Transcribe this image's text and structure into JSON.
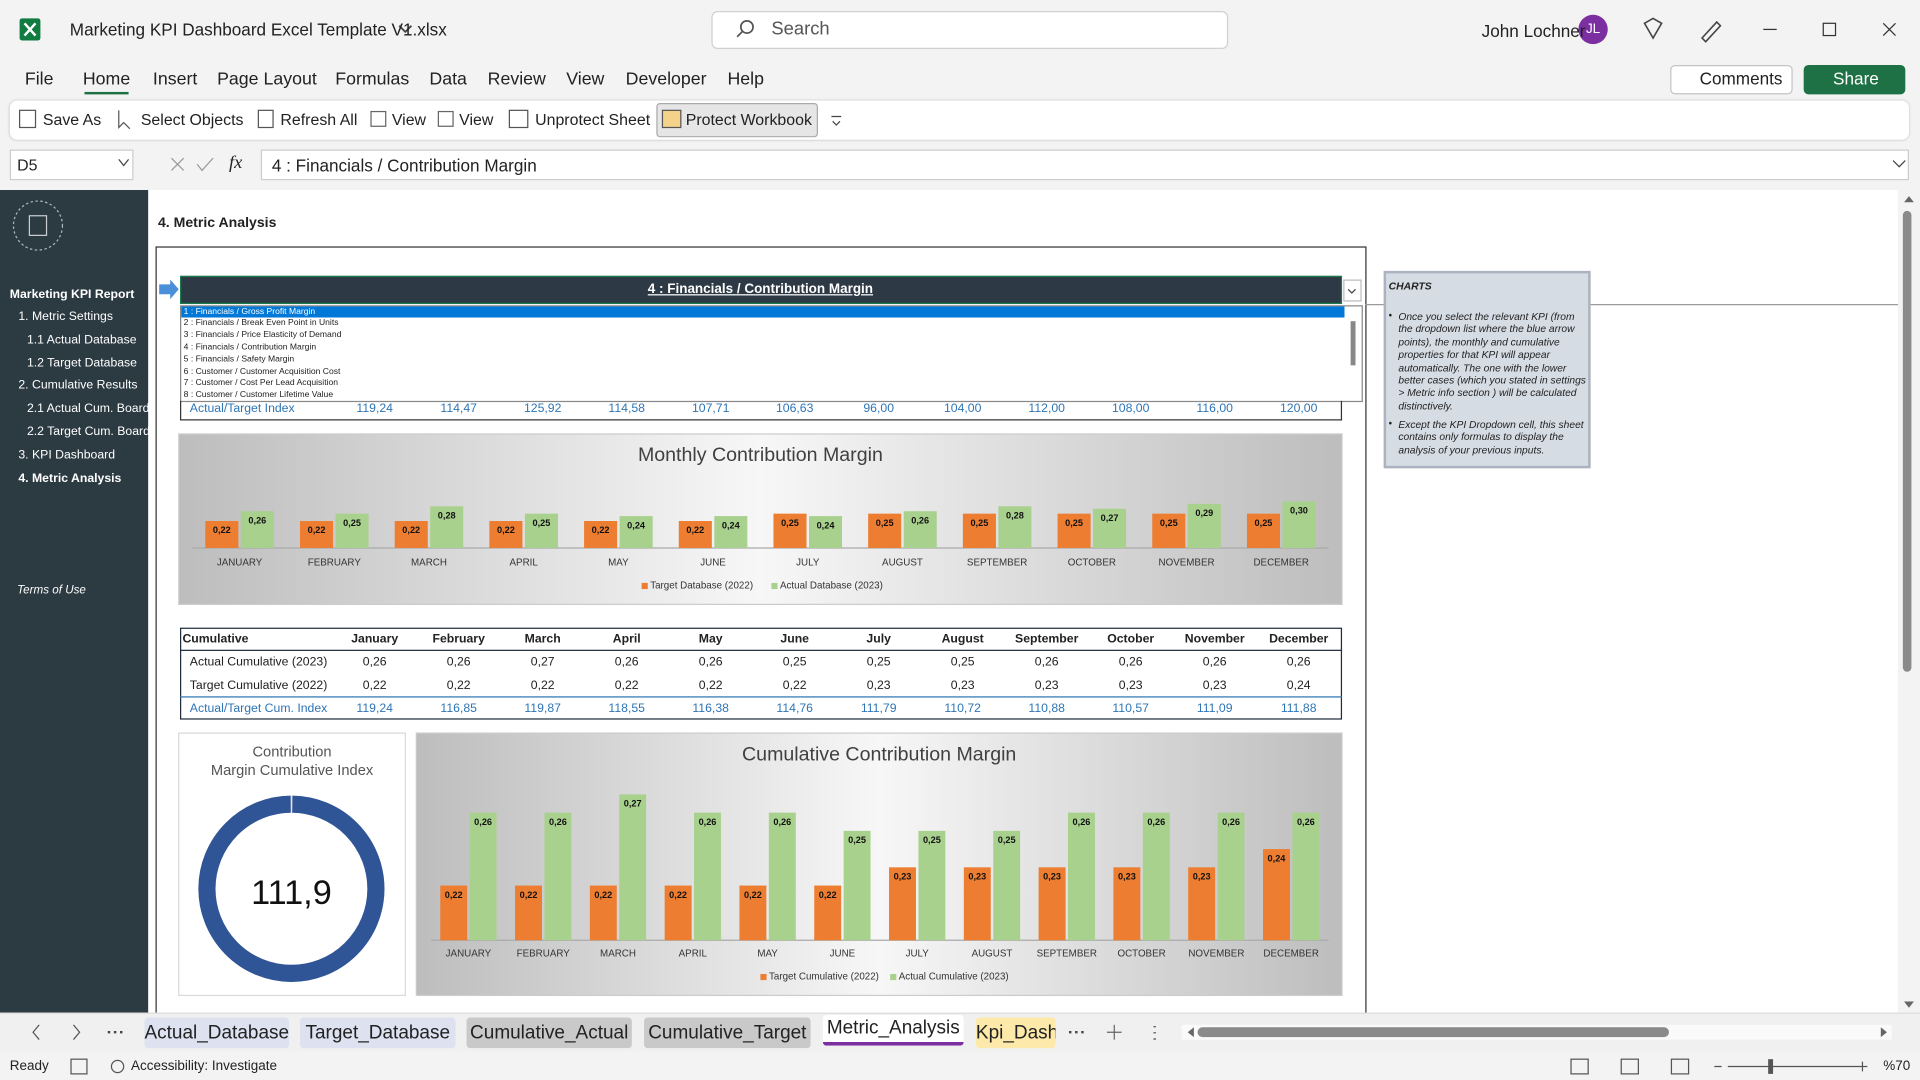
{
  "app": {
    "file_name": "Marketing KPI Dashboard Excel Template V1.xlsx",
    "search": "Search",
    "user": "John Lochner",
    "initials": "JL",
    "comments": "Comments",
    "share": "Share"
  },
  "menu": [
    "File",
    "Home",
    "Insert",
    "Page Layout",
    "Formulas",
    "Data",
    "Review",
    "View",
    "Developer",
    "Help"
  ],
  "toolbar": [
    "Save As",
    "Select Objects",
    "Refresh All",
    "View",
    "View",
    "Unprotect Sheet",
    "Protect Workbook"
  ],
  "formula_bar": {
    "cell": "D5",
    "fx": "fx",
    "formula": "4 : Financials / Contribution Margin"
  },
  "sidebar": {
    "title": "Marketing KPI Report",
    "items": [
      "1. Metric Settings",
      "1.1 Actual Database",
      "1.2 Target Database",
      "2. Cumulative Results",
      "2.1 Actual Cum. Board",
      "2.2 Target Cum. Board",
      "3. KPI Dashboard",
      "4. Metric Analysis"
    ],
    "terms": "Terms of Use"
  },
  "sheet": {
    "heading": "4. Metric Analysis",
    "kpi_selected": "4 : Financials / Contribution Margin",
    "kpi_options": [
      "1 : Financials / Gross Profit Margin",
      "2 : Financials / Break Even Point in Units",
      "3 : Financials / Price Elasticity of Demand",
      "4 : Financials / Contribution Margin",
      "5 : Financials / Safety Margin",
      "6 : Customer / Customer Acquisition Cost",
      "7 : Customer / Cost Per Lead Acquisition",
      "8 : Customer / Customer Lifetime Value"
    ],
    "monthly_index": {
      "label": "Actual/Target Index",
      "values": [
        "119,24",
        "114,47",
        "125,92",
        "114,58",
        "107,71",
        "106,63",
        "96,00",
        "104,00",
        "112,00",
        "108,00",
        "116,00",
        "120,00"
      ]
    },
    "cumulative_table": {
      "header": [
        "Cumulative",
        "January",
        "February",
        "March",
        "April",
        "May",
        "June",
        "July",
        "August",
        "September",
        "October",
        "November",
        "December"
      ],
      "rows": [
        [
          "Actual Cumulative (2023)",
          "0,26",
          "0,26",
          "0,27",
          "0,26",
          "0,26",
          "0,25",
          "0,25",
          "0,25",
          "0,26",
          "0,26",
          "0,26",
          "0,26"
        ],
        [
          "Target Cumulative (2022)",
          "0,22",
          "0,22",
          "0,22",
          "0,22",
          "0,22",
          "0,22",
          "0,23",
          "0,23",
          "0,23",
          "0,23",
          "0,23",
          "0,24"
        ],
        [
          "Actual/Target Cum. Index",
          "119,24",
          "116,85",
          "119,87",
          "118,55",
          "116,38",
          "114,76",
          "111,79",
          "110,72",
          "110,88",
          "110,57",
          "111,09",
          "111,88"
        ]
      ]
    },
    "info": {
      "title": "CHARTS",
      "bullets": [
        "Once you select the relevant KPI (from the dropdown list where the blue arrow points), the monthly and cumulative properties for that KPI will appear automatically. The one with the lower better cases (which you stated in settings > Metric info section ) will be calculated distinctively.",
        "Except the KPI Dropdown cell, this sheet contains only formulas to display the analysis of your previous inputs."
      ]
    }
  },
  "chart_data": [
    {
      "type": "bar",
      "title": "Monthly Contribution Margin",
      "categories": [
        "JANUARY",
        "FEBRUARY",
        "MARCH",
        "APRIL",
        "MAY",
        "JUNE",
        "JULY",
        "AUGUST",
        "SEPTEMBER",
        "OCTOBER",
        "NOVEMBER",
        "DECEMBER"
      ],
      "series": [
        {
          "name": "Target Database (2022)",
          "color": "#ed7d31",
          "values": [
            0.22,
            0.22,
            0.22,
            0.22,
            0.22,
            0.22,
            0.25,
            0.25,
            0.25,
            0.25,
            0.25,
            0.25
          ],
          "value_labels": [
            "0,22",
            "0,22",
            "0,22",
            "0,22",
            "0,22",
            "0,22",
            "0,25",
            "0,25",
            "0,25",
            "0,25",
            "0,25",
            "0,25"
          ]
        },
        {
          "name": "Actual Database (2023)",
          "color": "#a9d18e",
          "values": [
            0.26,
            0.25,
            0.28,
            0.25,
            0.24,
            0.24,
            0.24,
            0.26,
            0.28,
            0.27,
            0.29,
            0.3
          ],
          "value_labels": [
            "0,26",
            "0,25",
            "0,28",
            "0,25",
            "0,24",
            "0,24",
            "0,24",
            "0,26",
            "0,28",
            "0,27",
            "0,29",
            "0,30"
          ]
        }
      ]
    },
    {
      "type": "donut",
      "title": "Contribution Margin Cumulative Index",
      "value": 111.9,
      "value_label": "111,9",
      "color": "#2f5597"
    },
    {
      "type": "bar",
      "title": "Cumulative Contribution Margin",
      "categories": [
        "JANUARY",
        "FEBRUARY",
        "MARCH",
        "APRIL",
        "MAY",
        "JUNE",
        "JULY",
        "AUGUST",
        "SEPTEMBER",
        "OCTOBER",
        "NOVEMBER",
        "DECEMBER"
      ],
      "series": [
        {
          "name": "Target Cumulative (2022)",
          "color": "#ed7d31",
          "values": [
            0.22,
            0.22,
            0.22,
            0.22,
            0.22,
            0.22,
            0.23,
            0.23,
            0.23,
            0.23,
            0.23,
            0.24
          ],
          "value_labels": [
            "0,22",
            "0,22",
            "0,22",
            "0,22",
            "0,22",
            "0,22",
            "0,23",
            "0,23",
            "0,23",
            "0,23",
            "0,23",
            "0,24"
          ]
        },
        {
          "name": "Actual Cumulative (2023)",
          "color": "#a9d18e",
          "values": [
            0.26,
            0.26,
            0.27,
            0.26,
            0.26,
            0.25,
            0.25,
            0.25,
            0.26,
            0.26,
            0.26,
            0.26
          ],
          "value_labels": [
            "0,26",
            "0,26",
            "0,27",
            "0,26",
            "0,26",
            "0,25",
            "0,25",
            "0,25",
            "0,26",
            "0,26",
            "0,26",
            "0,26"
          ]
        }
      ]
    }
  ],
  "tabs": [
    "Actual_Database",
    "Target_Database",
    "Cumulative_Actual",
    "Cumulative_Target",
    "Metric_Analysis",
    "Kpi_Dash"
  ],
  "status": {
    "ready": "Ready",
    "accessibility": "Accessibility: Investigate",
    "zoom": "%70"
  }
}
